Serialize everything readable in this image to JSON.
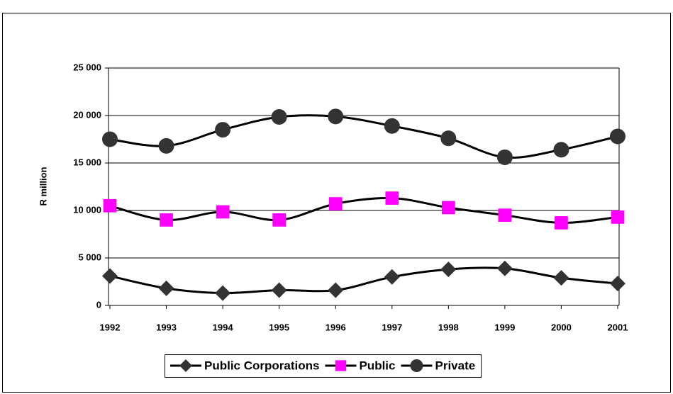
{
  "chart_data": {
    "type": "line",
    "y_label": "R million",
    "categories": [
      "1992",
      "1993",
      "1994",
      "1995",
      "1996",
      "1997",
      "1998",
      "1999",
      "2000",
      "2001"
    ],
    "series": [
      {
        "name": "Public Corporations",
        "color": "#333333",
        "line_color": "#000000",
        "marker": "diamond",
        "values": [
          3100,
          1800,
          1300,
          1600,
          1600,
          3000,
          3800,
          3900,
          2900,
          2300
        ]
      },
      {
        "name": "Public",
        "color": "#ff00ff",
        "line_color": "#000000",
        "marker": "square",
        "values": [
          10500,
          9000,
          9850,
          9000,
          10700,
          11300,
          10300,
          9500,
          8700,
          9300
        ]
      },
      {
        "name": "Private",
        "color": "#333333",
        "line_color": "#000000",
        "marker": "circle",
        "values": [
          17500,
          16800,
          18500,
          19850,
          19900,
          18900,
          17600,
          15600,
          16400,
          17800
        ]
      }
    ],
    "ylim": [
      0,
      25000
    ],
    "yticks": [
      0,
      {
        "value": 5000,
        "label": "5 000"
      },
      {
        "value": 10000,
        "label": "10 000"
      },
      {
        "value": 15000,
        "label": "15 000"
      },
      {
        "value": 20000,
        "label": "20 000"
      },
      {
        "value": 25000,
        "label": "25 000"
      }
    ],
    "grid": true,
    "legend": "bottom"
  }
}
